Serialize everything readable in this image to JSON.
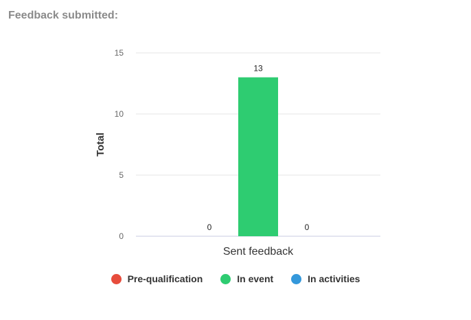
{
  "page": {
    "title": "Feedback submitted:"
  },
  "chart_data": {
    "type": "bar",
    "categories": [
      "Sent feedback"
    ],
    "series": [
      {
        "name": "Pre-qualification",
        "values": [
          0
        ],
        "color": "#e74c3c"
      },
      {
        "name": "In event",
        "values": [
          13
        ],
        "color": "#2ecc71"
      },
      {
        "name": "In activities",
        "values": [
          0
        ],
        "color": "#3498db"
      }
    ],
    "ylabel": "Total",
    "xlabel": "",
    "ylim": [
      0,
      15
    ],
    "yticks": [
      "0",
      "5",
      "10",
      "15"
    ],
    "grid": true,
    "data_labels": true,
    "legend_position": "bottom"
  }
}
